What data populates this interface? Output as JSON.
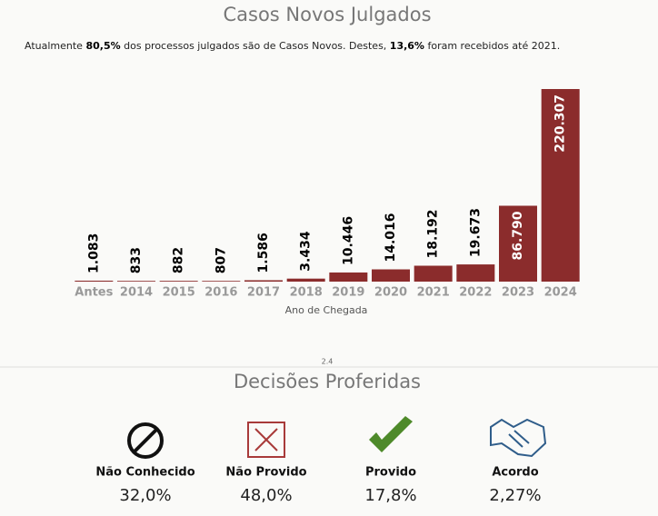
{
  "chart_data": {
    "type": "bar",
    "title": "Casos Novos Julgados",
    "subtitle": [
      "Atualmente",
      "80,5%",
      "dos processos julgados são de Casos Novos. Destes,",
      "13,6%",
      "foram recebidos até 2021."
    ],
    "x_label": "Ano de Chegada",
    "categories": [
      "Antes",
      "2014",
      "2015",
      "2016",
      "2017",
      "2018",
      "2019",
      "2020",
      "2021",
      "2022",
      "2023",
      "2024"
    ],
    "values": [
      1083,
      833,
      882,
      807,
      1586,
      3434,
      10446,
      14016,
      18192,
      19673,
      86790,
      220307
    ],
    "value_labels": [
      "1.083",
      "833",
      "882",
      "807",
      "1.586",
      "3.434",
      "10.446",
      "14.016",
      "18.192",
      "19.673",
      "86.790",
      "220.307"
    ],
    "color": "#8b2c2c"
  },
  "section": "2.4",
  "decisions": {
    "title": "Decisões Proferidas",
    "items": [
      {
        "label": "Não Conhecido",
        "percent": "32,0%"
      },
      {
        "label": "Não Provido",
        "percent": "48,0%"
      },
      {
        "label": "Provido",
        "percent": "17,8%"
      },
      {
        "label": "Acordo",
        "percent": "2,27%"
      }
    ]
  }
}
